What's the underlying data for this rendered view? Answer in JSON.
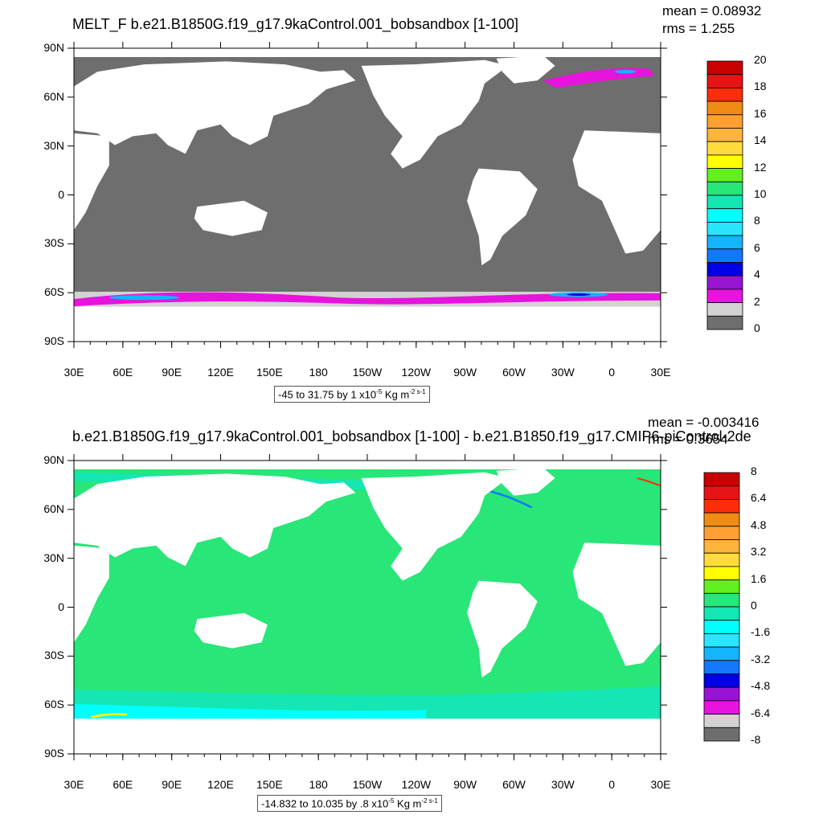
{
  "panels": [
    {
      "id": "top",
      "title": "MELT_F b.e21.B1850G.f19_g17.9kaControl.001_bobsandbox [1-100]",
      "mean": "mean = 0.08932",
      "rms": "rms = 1.255",
      "lat_labels": [
        "90N",
        "60N",
        "30N",
        "0",
        "30S",
        "60S",
        "90S"
      ],
      "lon_labels": [
        "30E",
        "60E",
        "90E",
        "120E",
        "150E",
        "180",
        "150W",
        "120W",
        "90W",
        "60W",
        "30W",
        "0",
        "30E"
      ],
      "colorbar_labels": [
        "20",
        "18",
        "16",
        "14",
        "12",
        "10",
        "8",
        "6",
        "4",
        "2",
        "0"
      ],
      "colorbar_colors": [
        "#c80000",
        "#e61414",
        "#ff2d0a",
        "#f08c14",
        "#ffa032",
        "#ffb43c",
        "#ffdc3c",
        "#ffff00",
        "#64f01e",
        "#28e678",
        "#14e6b4",
        "#00ffff",
        "#28e6ff",
        "#14b4ff",
        "#1478ff",
        "#0000e6",
        "#9614d2",
        "#e614dc",
        "#d2d2d2",
        "#6e6e6e"
      ],
      "caption": {
        "text": "-45 to 31.75 by 1 x10",
        "exp": "-5",
        "unit": " Kg m",
        "unit_exp": "-2 s-1"
      },
      "colors": {
        "ocean": "#6e6e6e",
        "land": "#ffffff",
        "ice_edge": "#d2d2d2",
        "melt_low": "#e614dc",
        "melt_mid": "#14b4ff",
        "melt_high": "#0000e6"
      }
    },
    {
      "id": "bottom",
      "title": "b.e21.B1850G.f19_g17.9kaControl.001_bobsandbox [1-100] - b.e21.B1850.f19_g17.CMIP6-piControl-2de",
      "mean": "mean = -0.003416",
      "rms": "rms = 0.3654",
      "lat_labels": [
        "90N",
        "60N",
        "30N",
        "0",
        "30S",
        "60S",
        "90S"
      ],
      "lon_labels": [
        "30E",
        "60E",
        "90E",
        "120E",
        "150E",
        "180",
        "150W",
        "120W",
        "90W",
        "60W",
        "30W",
        "0",
        "30E"
      ],
      "colorbar_labels": [
        "8",
        "6.4",
        "4.8",
        "3.2",
        "1.6",
        "0",
        "-1.6",
        "-3.2",
        "-4.8",
        "-6.4",
        "-8"
      ],
      "colorbar_colors": [
        "#c80000",
        "#e61414",
        "#ff2d0a",
        "#f08c14",
        "#ffa032",
        "#ffb43c",
        "#ffdc3c",
        "#ffff00",
        "#64f01e",
        "#28e678",
        "#14e6b4",
        "#00ffff",
        "#28e6ff",
        "#14b4ff",
        "#1478ff",
        "#0000e6",
        "#9614d2",
        "#e614dc",
        "#d2d2d2",
        "#6e6e6e"
      ],
      "caption": {
        "text": "-14.832 to 10.035 by .8 x10",
        "exp": "-5",
        "unit": " Kg m",
        "unit_exp": "-2 s-1"
      },
      "colors": {
        "ocean": "#28e678",
        "land": "#ffffff",
        "near_zero": "#14e6b4",
        "neg": "#00ffff",
        "neg_strong": "#1478ff",
        "pos": "#ffff00",
        "pos_strong": "#ff2d0a"
      }
    }
  ]
}
